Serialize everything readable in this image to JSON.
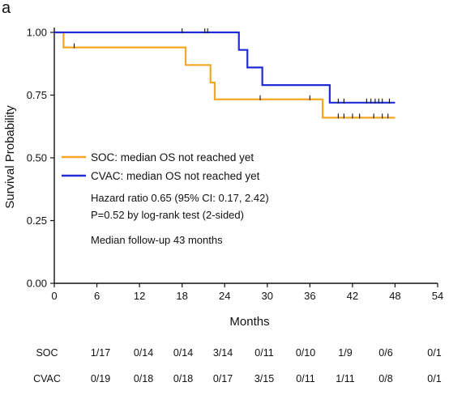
{
  "chart_data": {
    "type": "line",
    "panel_label": "a",
    "xlabel": "Months",
    "ylabel": "Survival Probability",
    "xlim": [
      0,
      54
    ],
    "ylim": [
      0,
      1
    ],
    "x_ticks": [
      0,
      6,
      12,
      18,
      24,
      30,
      36,
      42,
      48,
      54
    ],
    "y_ticks": [
      "0.00",
      "0.25",
      "0.50",
      "0.75",
      "1.00"
    ],
    "grid": false,
    "legend_position": "center-left",
    "series": [
      {
        "name": "SOC",
        "legend_label": "SOC: median OS not reached yet",
        "color": "#f5a623",
        "steps": [
          [
            0,
            1.0
          ],
          [
            1.3,
            0.94
          ],
          [
            18.5,
            0.87
          ],
          [
            22,
            0.8
          ],
          [
            22.6,
            0.733
          ],
          [
            36.5,
            0.733
          ],
          [
            37.8,
            0.66
          ],
          [
            48,
            0.66
          ]
        ],
        "censored": [
          [
            2.8,
            0.94
          ],
          [
            29,
            0.733
          ],
          [
            36,
            0.733
          ],
          [
            40,
            0.66
          ],
          [
            40.8,
            0.66
          ],
          [
            42,
            0.66
          ],
          [
            43,
            0.66
          ],
          [
            45,
            0.66
          ],
          [
            46.2,
            0.66
          ],
          [
            47,
            0.66
          ]
        ]
      },
      {
        "name": "CVAC",
        "legend_label": "CVAC: median OS not reached yet",
        "color": "#1f2bd6",
        "steps": [
          [
            0,
            1.0
          ],
          [
            26,
            0.93
          ],
          [
            27.2,
            0.86
          ],
          [
            29.3,
            0.79
          ],
          [
            38.8,
            0.72
          ],
          [
            48,
            0.72
          ]
        ],
        "censored": [
          [
            18,
            1.0
          ],
          [
            21.2,
            1.0
          ],
          [
            21.6,
            1.0
          ],
          [
            40,
            0.72
          ],
          [
            40.8,
            0.72
          ],
          [
            44,
            0.72
          ],
          [
            44.6,
            0.72
          ],
          [
            45.2,
            0.72
          ],
          [
            45.7,
            0.72
          ],
          [
            46.2,
            0.72
          ],
          [
            47.2,
            0.72
          ]
        ]
      }
    ],
    "annotations": [
      "Hazard ratio 0.65 (95% CI: 0.17, 2.42)",
      "P=0.52 by log-rank test (2-sided)",
      "Median follow-up 43 months"
    ],
    "risk_table": {
      "rows": [
        {
          "label": "SOC",
          "values": [
            "1/17",
            "0/14",
            "0/14",
            "3/14",
            "0/11",
            "0/10",
            "1/9",
            "0/6",
            "0/1"
          ]
        },
        {
          "label": "CVAC",
          "values": [
            "0/19",
            "0/18",
            "0/18",
            "0/17",
            "3/15",
            "0/11",
            "1/11",
            "0/8",
            "0/1"
          ]
        }
      ]
    }
  }
}
